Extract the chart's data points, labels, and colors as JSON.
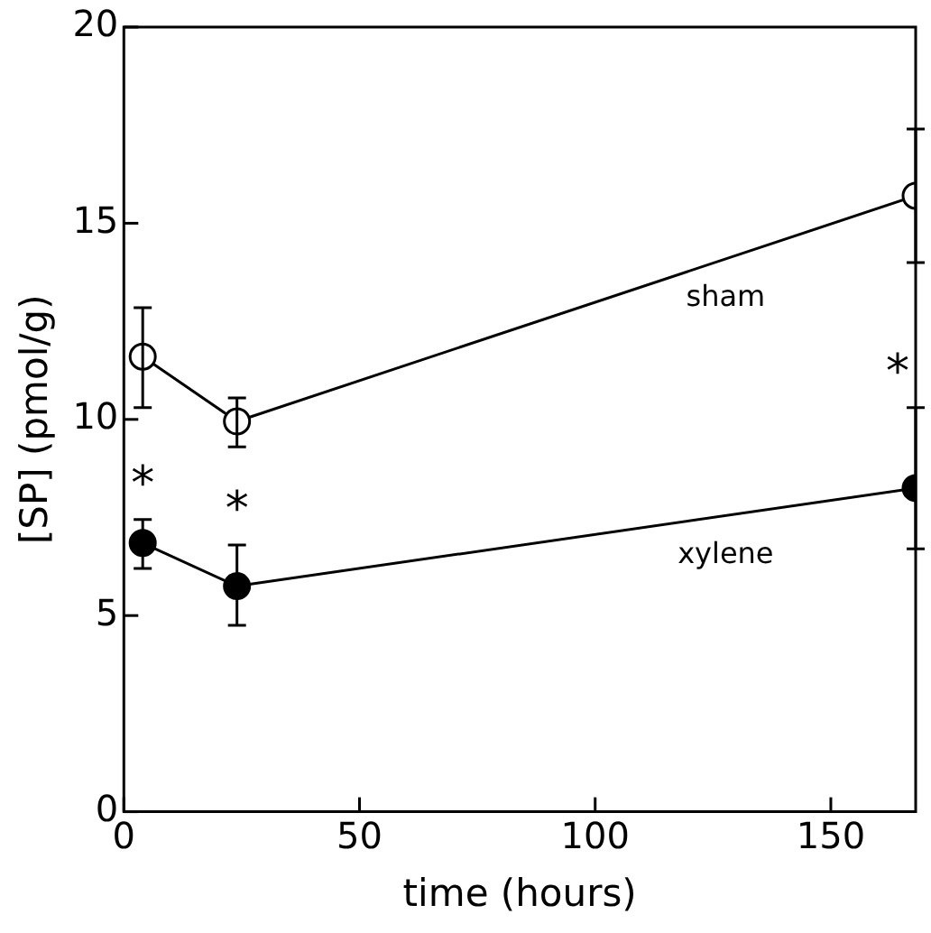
{
  "chart_data": {
    "type": "line",
    "xlabel": "time (hours)",
    "ylabel": "[SP] (pmol/g)",
    "xlim": [
      0,
      168
    ],
    "xticks": [
      0,
      50,
      100,
      150
    ],
    "ylim": [
      0,
      20
    ],
    "yticks": [
      0,
      5,
      10,
      15,
      20
    ],
    "grid": false,
    "legend": false,
    "marker": "circle",
    "line_style": "solid",
    "series": [
      {
        "name": "sham",
        "color": "#000000",
        "x": [
          4,
          24,
          168
        ],
        "values": [
          11.6,
          9.95,
          15.7
        ],
        "errors": [
          [
            10.3,
            12.85
          ],
          [
            9.3,
            10.55
          ],
          [
            14.0,
            17.4
          ]
        ]
      },
      {
        "name": "xylene",
        "color": "#000000",
        "x": [
          4,
          24,
          168
        ],
        "values": [
          6.85,
          5.75,
          8.25
        ],
        "errors": [
          [
            6.2,
            7.45
          ],
          [
            4.75,
            6.8
          ],
          [
            6.7,
            10.3
          ]
        ]
      }
    ],
    "annotations": [
      {
        "text": "*",
        "x": 4,
        "y": 6.85
      },
      {
        "text": "*",
        "x": 24,
        "y": 5.75
      },
      {
        "text": "*",
        "x": 168,
        "y": 8.25
      }
    ]
  }
}
